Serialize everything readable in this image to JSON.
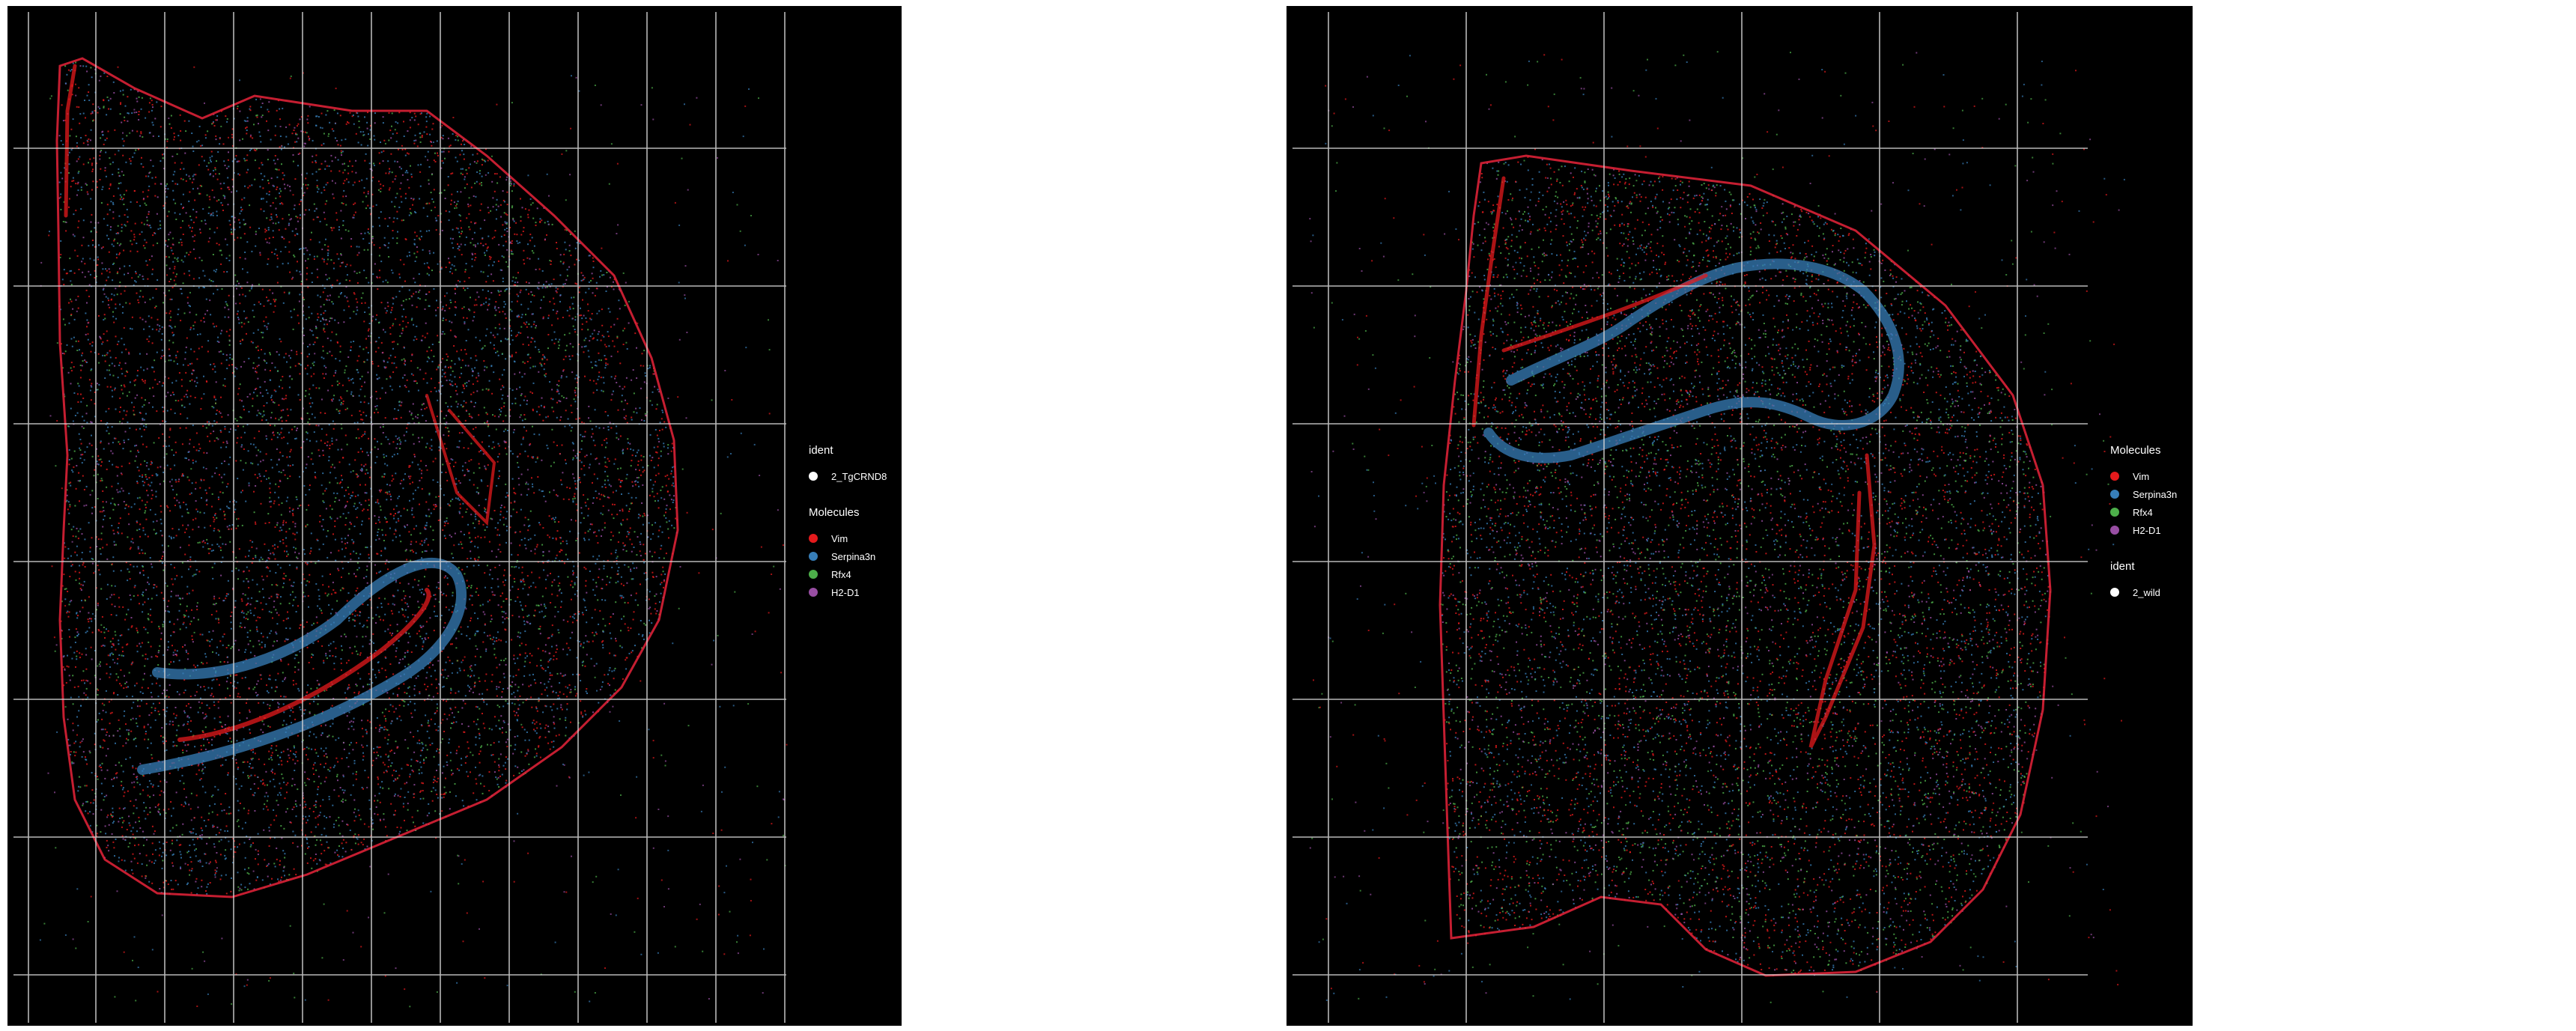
{
  "chart_data": [
    {
      "type": "scatter",
      "title": "",
      "xlabel": "",
      "ylabel": "",
      "grid": true,
      "legend_placement": "right",
      "ident_title": "ident",
      "ident_value": "2_TgCRND8",
      "molecules_title": "Molecules",
      "legend_order": [
        "ident",
        "molecules"
      ],
      "series": [
        {
          "name": "Vim",
          "color": "#e41a1c"
        },
        {
          "name": "Serpina3n",
          "color": "#377eb8"
        },
        {
          "name": "Rfx4",
          "color": "#4daf4a"
        },
        {
          "name": "H2-D1",
          "color": "#984ea3"
        }
      ]
    },
    {
      "type": "scatter",
      "title": "",
      "xlabel": "",
      "ylabel": "",
      "grid": true,
      "legend_placement": "right",
      "ident_title": "ident",
      "ident_value": "2_wild",
      "molecules_title": "Molecules",
      "legend_order": [
        "molecules",
        "ident"
      ],
      "series": [
        {
          "name": "Vim",
          "color": "#e41a1c"
        },
        {
          "name": "Serpina3n",
          "color": "#377eb8"
        },
        {
          "name": "Rfx4",
          "color": "#4daf4a"
        },
        {
          "name": "H2-D1",
          "color": "#984ea3"
        }
      ]
    }
  ]
}
